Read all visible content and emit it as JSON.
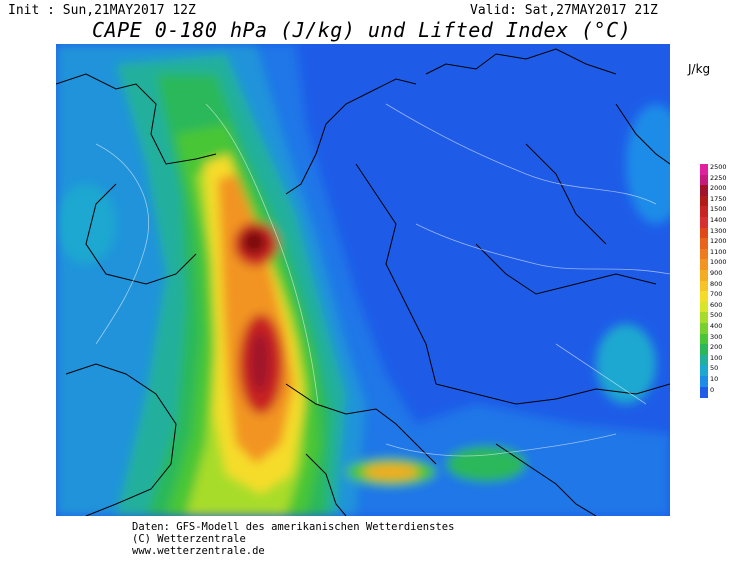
{
  "header": {
    "init": "Init : Sun,21MAY2017 12Z",
    "valid": "Valid: Sat,27MAY2017 21Z",
    "title": "CAPE 0-180 hPa (J/kg) und Lifted Index (°C)"
  },
  "legend": {
    "unit": "J/kg",
    "levels": [
      {
        "label": "2500",
        "color": "#e0209e"
      },
      {
        "label": "2250",
        "color": "#c61a7e"
      },
      {
        "label": "2000",
        "color": "#a0132b"
      },
      {
        "label": "1750",
        "color": "#b31a1a"
      },
      {
        "label": "1500",
        "color": "#c82424"
      },
      {
        "label": "1400",
        "color": "#d83030"
      },
      {
        "label": "1300",
        "color": "#e04818"
      },
      {
        "label": "1200",
        "color": "#e8641c"
      },
      {
        "label": "1100",
        "color": "#ee7c1e"
      },
      {
        "label": "1000",
        "color": "#f29420"
      },
      {
        "label": "900",
        "color": "#f4ac22"
      },
      {
        "label": "800",
        "color": "#f6c426"
      },
      {
        "label": "700",
        "color": "#f6dc2a"
      },
      {
        "label": "600",
        "color": "#d8e62a"
      },
      {
        "label": "500",
        "color": "#a8dc2c"
      },
      {
        "label": "400",
        "color": "#78d030"
      },
      {
        "label": "300",
        "color": "#48c636"
      },
      {
        "label": "200",
        "color": "#2ab85a"
      },
      {
        "label": "100",
        "color": "#22b09c"
      },
      {
        "label": "50",
        "color": "#1ea8d0"
      },
      {
        "label": "10",
        "color": "#1c8ce8"
      },
      {
        "label": "0",
        "color": "#1e5ce8"
      }
    ]
  },
  "footer": {
    "line1": "Daten: GFS-Modell des amerikanischen Wetterdienstes",
    "line2": "(C) Wetterzentrale",
    "line3": "www.wetterzentrale.de"
  }
}
